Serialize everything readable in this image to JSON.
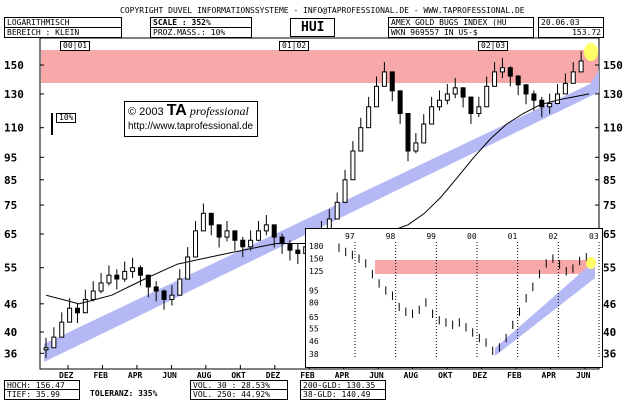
{
  "header": {
    "copyright_line": "COPYRIGHT  DUVEL INFORMATIONSSYSTEME - INFO@TAPROFESSIONAL.DE - WWW.TAPROFESSIONAL.DE",
    "scale_mode": "LOGARITHMISCH",
    "range_label": "BEREICH : KLEIN",
    "scale_label": "SCALE : 352%",
    "prozmass_label": "PROZ.MASS.: 10%",
    "ticker": "HUI",
    "index_name": "AMEX GOLD BUGS INDEX (HU",
    "date": "20.06.03",
    "wkn": "WKN 969557   IN US-$",
    "last_price": "153.72"
  },
  "watermark": {
    "copyright": "© 2003",
    "brand": "TA",
    "brand_suffix": "professional",
    "url": "http://www.taprofessional.de"
  },
  "year_markers": [
    "00|01",
    "01|02",
    "02|03"
  ],
  "scale_marker": "10%",
  "stats": {
    "hoch": "HOCH: 156.47",
    "tief": "TIEF: 35.99",
    "toleranz": "TOLERANZ: 335%",
    "vol30": "VOL. 30 : 28.53%",
    "vol250": "VOL. 250: 44.92%",
    "gld200": "200-GLD: 130.35",
    "gld38": "38-GLD: 140.49"
  },
  "colors": {
    "resistance_band": "#f7a8a8",
    "trend_channel": "#b4b9f5",
    "highlight": "#ffff66"
  },
  "chart_data": [
    {
      "type": "candlestick",
      "title": "HUI",
      "y_scale": "log",
      "ylim": [
        35,
        160
      ],
      "y_ticks": [
        36,
        40,
        46,
        55,
        65,
        75,
        85,
        95,
        110,
        130,
        150
      ],
      "x_labels": [
        "DEZ",
        "FEB",
        "APR",
        "JUN",
        "AUG",
        "OKT",
        "DEZ",
        "FEB",
        "APR",
        "JUN",
        "AUG",
        "OKT",
        "DEZ",
        "FEB",
        "APR",
        "JUN"
      ],
      "series": [
        {
          "values": [
            37,
            39,
            42,
            45,
            44,
            47,
            49,
            51,
            53,
            52,
            54,
            55,
            53,
            50,
            49,
            47,
            48,
            52,
            58,
            66,
            72,
            68,
            64,
            66,
            63,
            61,
            63,
            66,
            68,
            64,
            62,
            60,
            59,
            61,
            63,
            66,
            70,
            76,
            85,
            98,
            110,
            122,
            135,
            145,
            132,
            118,
            98,
            102,
            112,
            122,
            126,
            130,
            134,
            128,
            118,
            122,
            135,
            145,
            148,
            142,
            136,
            130,
            126,
            122,
            124,
            130,
            137,
            145,
            153
          ]
        },
        {
          "values": [
            48,
            47,
            46,
            47,
            48,
            50,
            52,
            54,
            56,
            57,
            58,
            59,
            60,
            61,
            62,
            62,
            62,
            63,
            63,
            64,
            65,
            66,
            68,
            72,
            78,
            86,
            95,
            104,
            112,
            118,
            123,
            126,
            128,
            130
          ]
        }
      ]
    },
    {
      "type": "candlestick",
      "y_scale": "log",
      "ylim": [
        36,
        190
      ],
      "y_ticks": [
        38,
        46,
        55,
        65,
        80,
        95,
        125,
        150,
        180
      ],
      "x_labels": [
        "97",
        "98",
        "99",
        "00",
        "01",
        "02",
        "03"
      ],
      "series": [
        {
          "values": [
            175,
            165,
            158,
            150,
            140,
            120,
            105,
            95,
            88,
            75,
            70,
            68,
            72,
            80,
            68,
            62,
            60,
            58,
            60,
            56,
            52,
            48,
            45,
            40,
            42,
            48,
            58,
            70,
            85,
            100,
            120,
            140,
            150,
            138,
            125,
            130,
            145,
            153
          ]
        }
      ]
    }
  ]
}
